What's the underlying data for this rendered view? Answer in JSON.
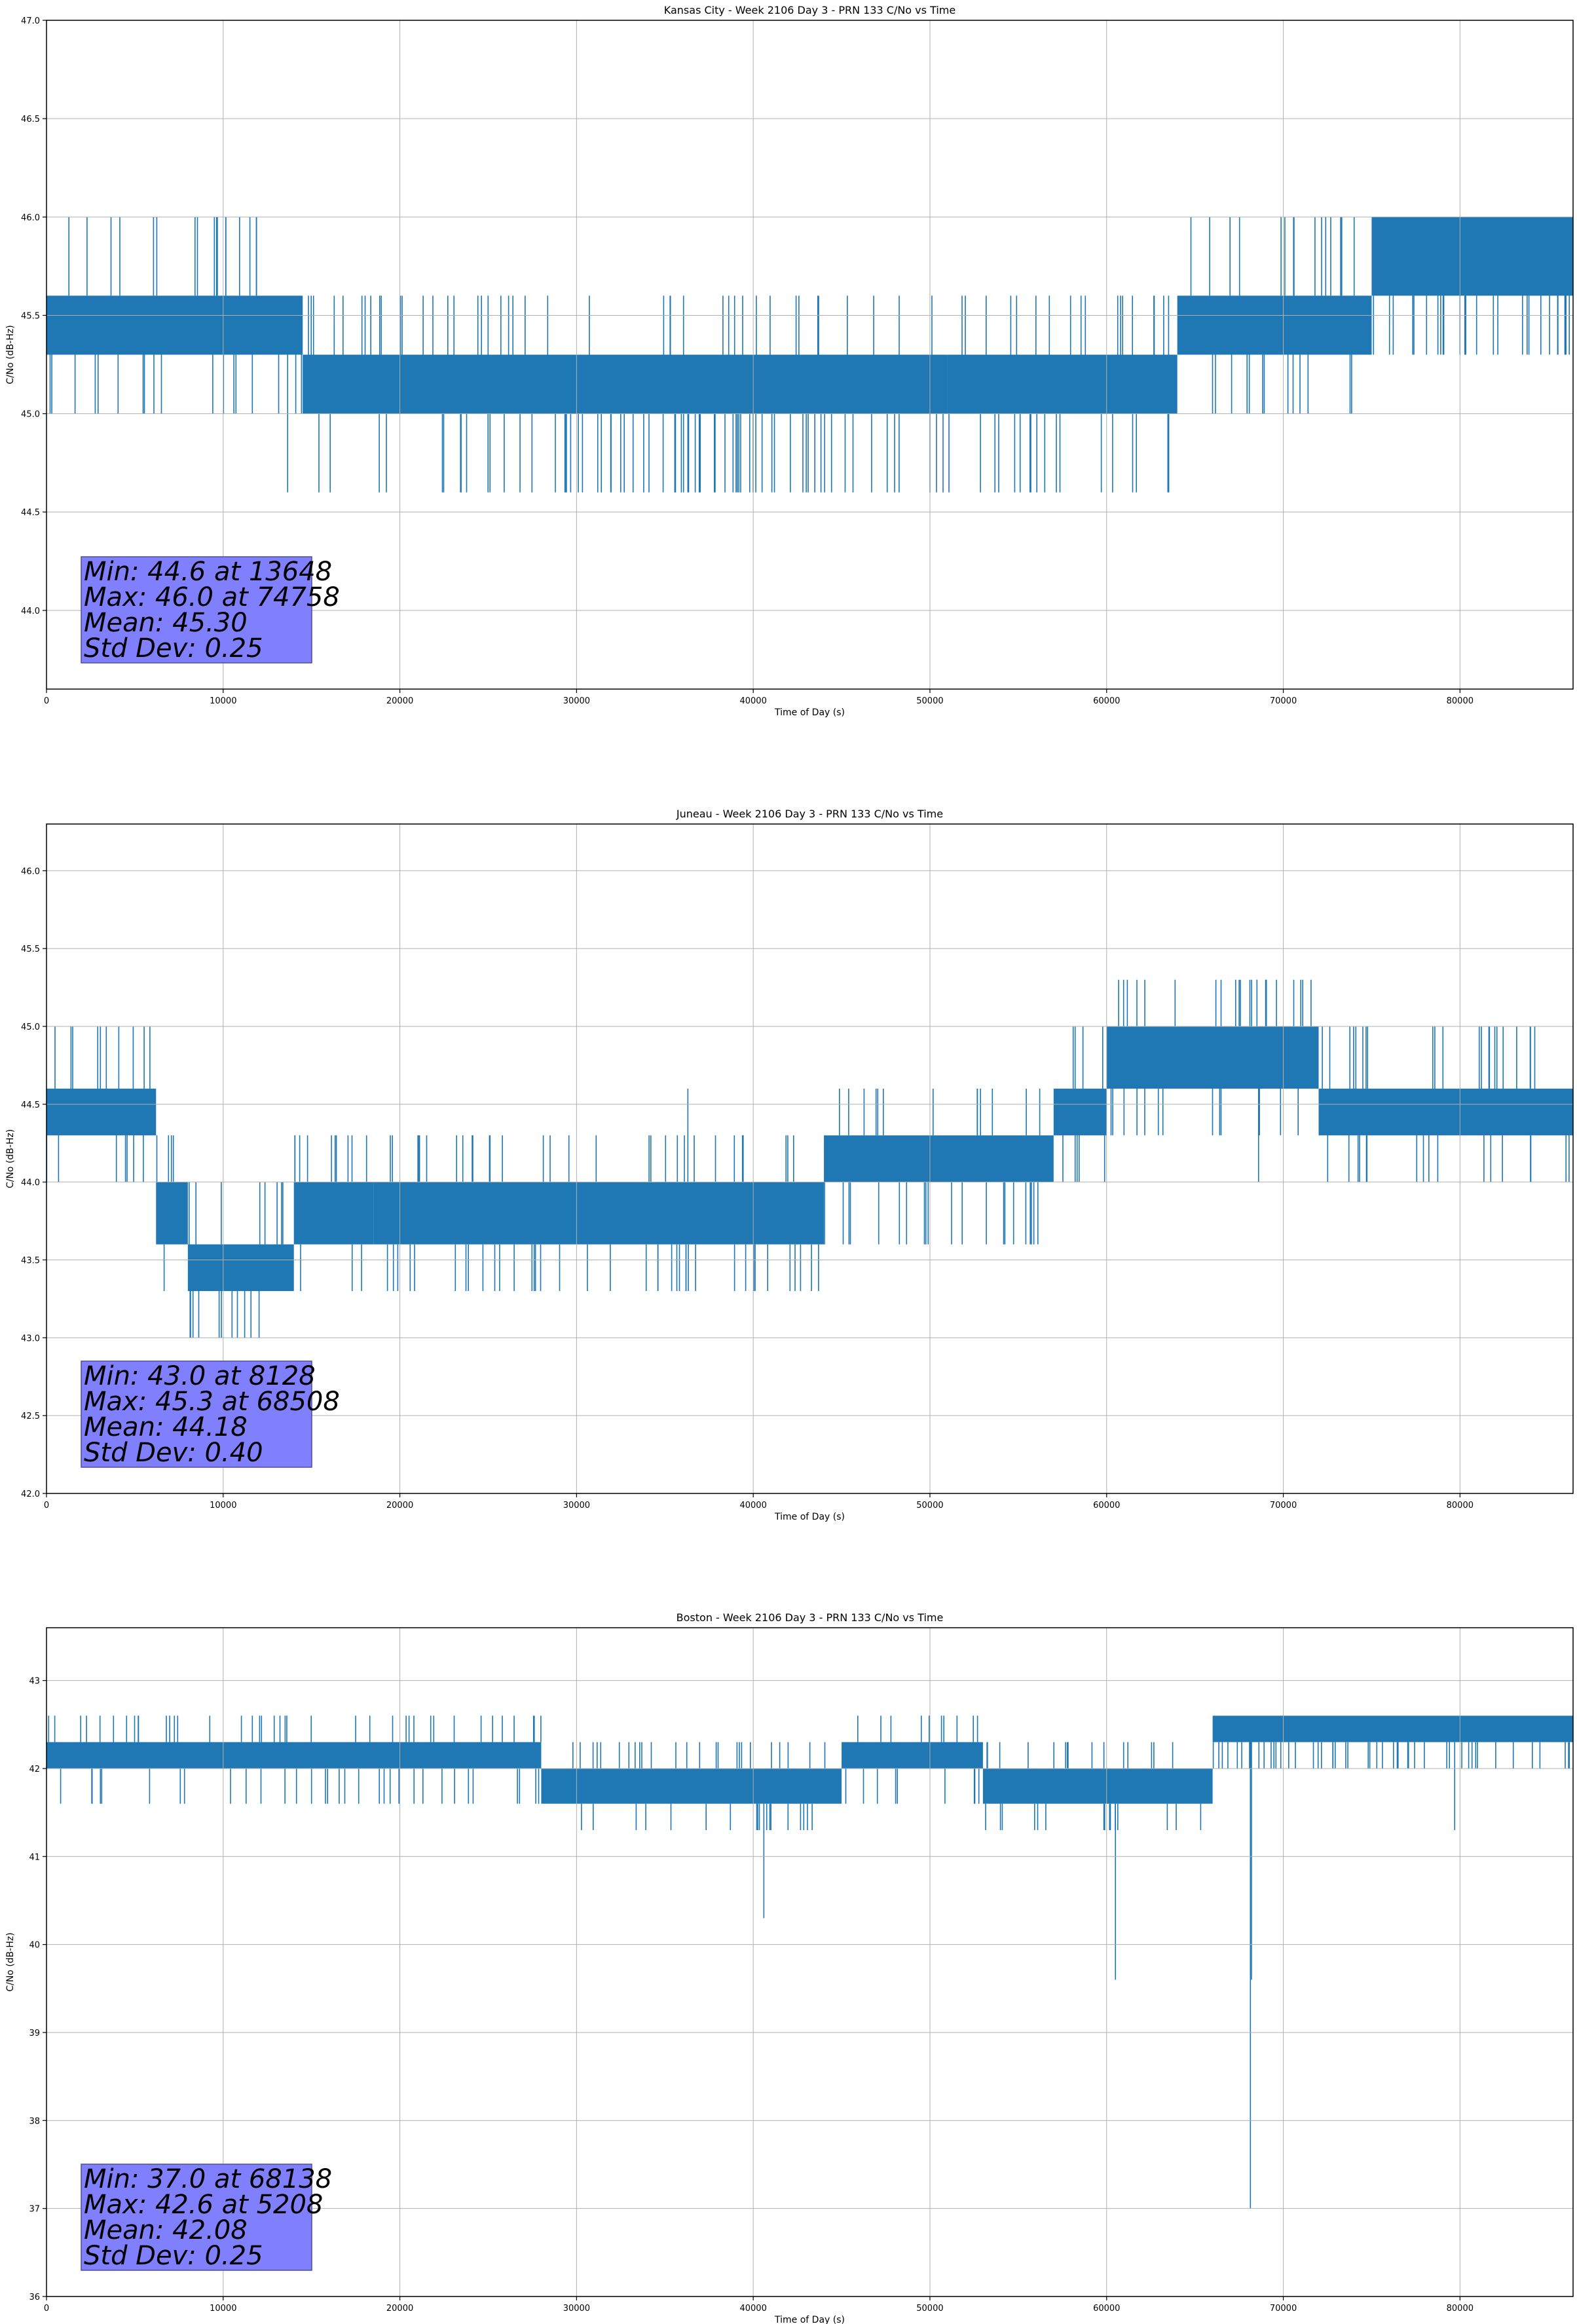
{
  "chart_data": [
    {
      "type": "line",
      "title": "Kansas City - Week 2106 Day 3 - PRN 133 C/No vs Time",
      "xlabel": "Time of Day (s)",
      "ylabel": "C/No (dB-Hz)",
      "xlim": [
        0,
        86400
      ],
      "ylim": [
        43.6,
        47.0
      ],
      "xticks": [
        0,
        10000,
        20000,
        30000,
        40000,
        50000,
        60000,
        70000,
        80000
      ],
      "yticks": [
        44.0,
        44.5,
        45.0,
        45.5,
        46.0,
        46.5,
        47.0
      ],
      "ytick_labels": [
        "44.0",
        "44.5",
        "45.0",
        "45.5",
        "46.0",
        "46.5",
        "47.0"
      ],
      "grid": true,
      "series_color": "#1f77b4",
      "levels": [
        44.6,
        45.0,
        45.3,
        45.6,
        46.0
      ],
      "bands": [
        {
          "x": [
            0,
            14500
          ],
          "low": 45.3,
          "high": 45.6
        },
        {
          "x": [
            14500,
            51000
          ],
          "low": 45.0,
          "high": 45.3
        },
        {
          "x": [
            51000,
            64000
          ],
          "low": 45.0,
          "high": 45.3
        },
        {
          "x": [
            64000,
            75000
          ],
          "low": 45.3,
          "high": 45.6
        },
        {
          "x": [
            75000,
            86400
          ],
          "low": 45.6,
          "high": 46.0
        }
      ],
      "spikes": [
        [
          13648,
          44.6
        ],
        [
          25100,
          44.6
        ],
        [
          26800,
          44.6
        ],
        [
          28800,
          44.6
        ],
        [
          29400,
          44.6
        ],
        [
          30100,
          44.6
        ],
        [
          31200,
          44.6
        ],
        [
          32500,
          44.6
        ],
        [
          33200,
          44.6
        ],
        [
          34100,
          44.6
        ],
        [
          34900,
          44.6
        ],
        [
          35600,
          44.6
        ],
        [
          36300,
          44.6
        ],
        [
          37000,
          44.6
        ],
        [
          37800,
          44.6
        ],
        [
          38400,
          44.6
        ],
        [
          39100,
          44.6
        ],
        [
          39800,
          44.6
        ],
        [
          40500,
          44.6
        ],
        [
          41200,
          44.6
        ],
        [
          42100,
          44.6
        ],
        [
          43000,
          44.6
        ],
        [
          45200,
          44.6
        ],
        [
          46700,
          44.6
        ],
        [
          48000,
          44.6
        ],
        [
          50000,
          44.6
        ],
        [
          59700,
          44.6
        ],
        [
          71400,
          45.0
        ],
        [
          83800,
          45.3
        ],
        [
          86000,
          45.3
        ]
      ],
      "stats_box": [
        "Min: 44.6 at 13648",
        "Max: 46.0 at 74758",
        "Mean: 45.30",
        "Std Dev: 0.25"
      ]
    },
    {
      "type": "line",
      "title": "Juneau - Week 2106 Day 3 - PRN 133 C/No vs Time",
      "xlabel": "Time of Day (s)",
      "ylabel": "C/No (dB-Hz)",
      "xlim": [
        0,
        86400
      ],
      "ylim": [
        42.0,
        46.3
      ],
      "xticks": [
        0,
        10000,
        20000,
        30000,
        40000,
        50000,
        60000,
        70000,
        80000
      ],
      "yticks": [
        42.0,
        42.5,
        43.0,
        43.5,
        44.0,
        44.5,
        45.0,
        45.5,
        46.0
      ],
      "ytick_labels": [
        "42.0",
        "42.5",
        "43.0",
        "43.5",
        "44.0",
        "44.5",
        "45.0",
        "45.5",
        "46.0"
      ],
      "grid": true,
      "series_color": "#1f77b4",
      "levels": [
        43.0,
        43.3,
        43.6,
        44.0,
        44.3,
        44.6,
        45.0,
        45.3
      ],
      "bands": [
        {
          "x": [
            0,
            6200
          ],
          "low": 44.3,
          "high": 44.6
        },
        {
          "x": [
            6200,
            8000
          ],
          "low": 43.6,
          "high": 44.0
        },
        {
          "x": [
            8000,
            14000
          ],
          "low": 43.3,
          "high": 43.6
        },
        {
          "x": [
            14000,
            18500
          ],
          "low": 43.6,
          "high": 44.0
        },
        {
          "x": [
            18500,
            24000
          ],
          "low": 43.6,
          "high": 44.0
        },
        {
          "x": [
            24000,
            30000
          ],
          "low": 43.6,
          "high": 44.0
        },
        {
          "x": [
            30000,
            40000
          ],
          "low": 43.6,
          "high": 44.0
        },
        {
          "x": [
            40000,
            44000
          ],
          "low": 43.6,
          "high": 44.0
        },
        {
          "x": [
            44000,
            57000
          ],
          "low": 44.0,
          "high": 44.3
        },
        {
          "x": [
            57000,
            60000
          ],
          "low": 44.3,
          "high": 44.6
        },
        {
          "x": [
            60000,
            72000
          ],
          "low": 44.6,
          "high": 45.0
        },
        {
          "x": [
            72000,
            86400
          ],
          "low": 44.3,
          "high": 44.6
        }
      ],
      "spikes": [
        [
          2900,
          45.0
        ],
        [
          8128,
          43.0
        ],
        [
          9900,
          43.0
        ],
        [
          10500,
          43.0
        ],
        [
          36300,
          44.6
        ],
        [
          68508,
          45.3
        ],
        [
          69000,
          45.3
        ],
        [
          68600,
          44.0
        ],
        [
          82400,
          44.0
        ],
        [
          86000,
          44.0
        ],
        [
          17300,
          43.3
        ],
        [
          27600,
          43.3
        ],
        [
          47100,
          43.6
        ]
      ],
      "stats_box": [
        "Min: 43.0 at 8128",
        "Max: 45.3 at 68508",
        "Mean: 44.18",
        "Std Dev: 0.40"
      ]
    },
    {
      "type": "line",
      "title": "Boston - Week 2106 Day 3 - PRN 133 C/No vs Time",
      "xlabel": "Time of Day (s)",
      "ylabel": "C/No (dB-Hz)",
      "xlim": [
        0,
        86400
      ],
      "ylim": [
        36.0,
        43.6
      ],
      "xticks": [
        0,
        10000,
        20000,
        30000,
        40000,
        50000,
        60000,
        70000,
        80000
      ],
      "yticks": [
        36,
        37,
        38,
        39,
        40,
        41,
        42,
        43
      ],
      "ytick_labels": [
        "36",
        "37",
        "38",
        "39",
        "40",
        "41",
        "42",
        "43"
      ],
      "grid": true,
      "series_color": "#1f77b4",
      "levels": [
        41.3,
        41.6,
        42.0,
        42.3,
        42.6
      ],
      "bands": [
        {
          "x": [
            0,
            28000
          ],
          "low": 42.0,
          "high": 42.3
        },
        {
          "x": [
            28000,
            45000
          ],
          "low": 41.6,
          "high": 42.0
        },
        {
          "x": [
            45000,
            53000
          ],
          "low": 42.0,
          "high": 42.3
        },
        {
          "x": [
            53000,
            66000
          ],
          "low": 41.6,
          "high": 42.0
        },
        {
          "x": [
            66000,
            86400
          ],
          "low": 42.3,
          "high": 42.6
        }
      ],
      "spikes": [
        [
          800,
          41.6
        ],
        [
          5208,
          42.6
        ],
        [
          40600,
          40.3
        ],
        [
          60500,
          39.6
        ],
        [
          68138,
          37.0
        ],
        [
          68200,
          39.6
        ],
        [
          79700,
          41.3
        ],
        [
          40200,
          41.3
        ],
        [
          41000,
          41.3
        ]
      ],
      "stats_box": [
        "Min: 37.0 at 68138",
        "Max: 42.6 at 5208",
        "Mean: 42.08",
        "Std Dev: 0.25"
      ]
    }
  ]
}
